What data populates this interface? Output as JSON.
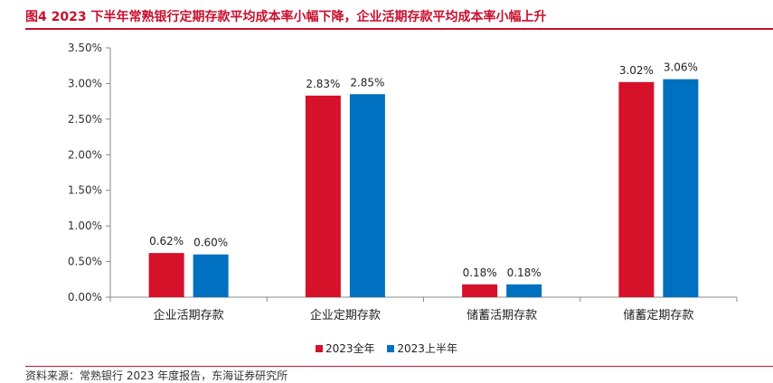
{
  "title": "图4  2023 下半年常熟银行定期存款平均成本率小幅下降，企业活期存款平均成本率小幅上升",
  "source": "资料来源：常熟银行 2023 年度报告，东海证券研究所",
  "colors": {
    "accent": "#c8102e",
    "series": [
      "#d6112a",
      "#0070c0"
    ]
  },
  "chart_data": {
    "type": "bar",
    "categories": [
      "企业活期存款",
      "企业定期存款",
      "储蓄活期存款",
      "储蓄定期存款"
    ],
    "series": [
      {
        "name": "2023全年",
        "values": [
          0.62,
          2.83,
          0.18,
          3.02
        ],
        "labels": [
          "0.62%",
          "2.83%",
          "0.18%",
          "3.02%"
        ]
      },
      {
        "name": "2023上半年",
        "values": [
          0.6,
          2.85,
          0.18,
          3.06
        ],
        "labels": [
          "0.60%",
          "2.85%",
          "0.18%",
          "3.06%"
        ]
      }
    ],
    "yticks": [
      0,
      0.5,
      1.0,
      1.5,
      2.0,
      2.5,
      3.0,
      3.5
    ],
    "ytick_labels": [
      "0.00%",
      "0.50%",
      "1.00%",
      "1.50%",
      "2.00%",
      "2.50%",
      "3.00%",
      "3.50%"
    ],
    "ylim": [
      0,
      3.5
    ],
    "grid": false,
    "legend_position": "bottom",
    "xlabel": "",
    "ylabel": ""
  }
}
